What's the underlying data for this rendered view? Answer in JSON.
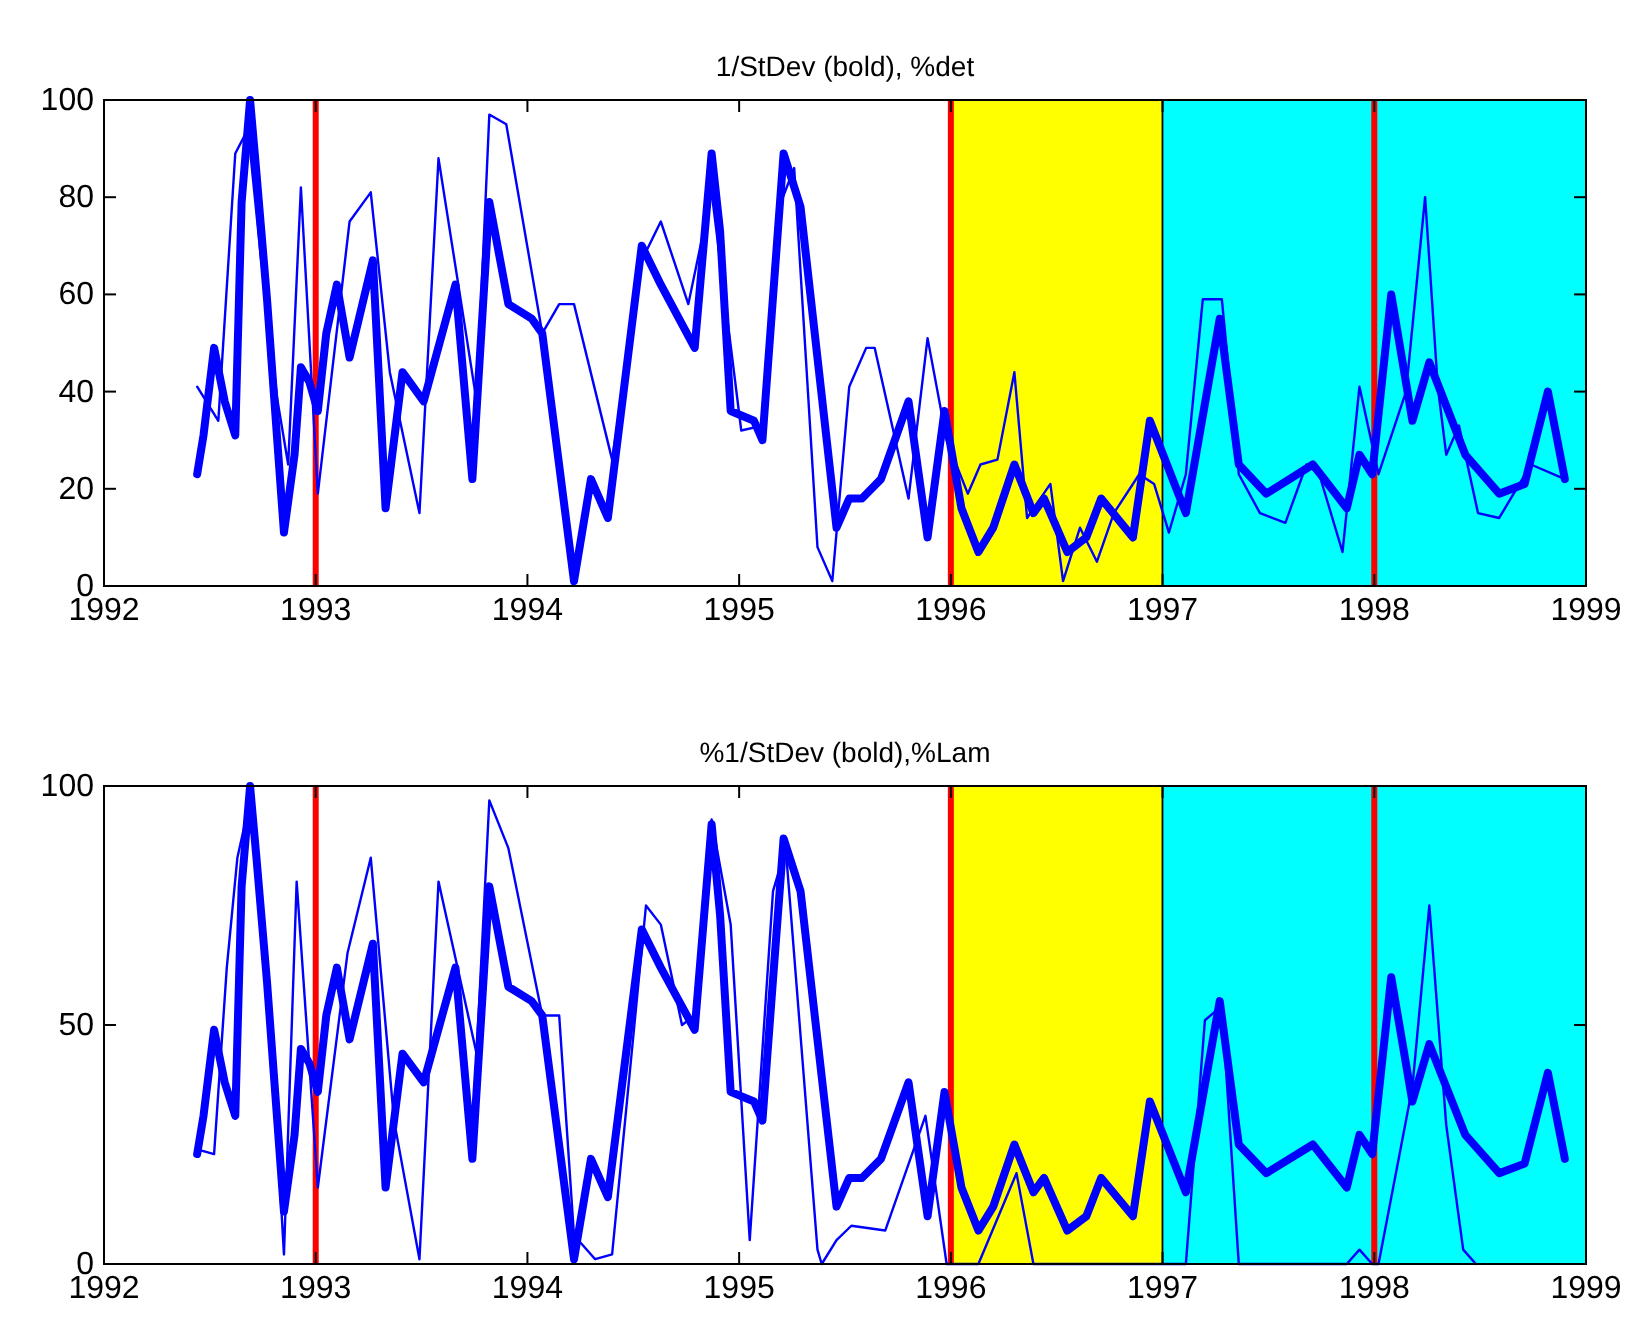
{
  "chart_data": [
    {
      "type": "line",
      "title": "1/StDev (bold), %det",
      "xlim": [
        1992,
        1999
      ],
      "xticks": [
        1992,
        1993,
        1994,
        1995,
        1996,
        1997,
        1998,
        1999
      ],
      "ylim": [
        0,
        100
      ],
      "yticks": [
        0,
        20,
        40,
        60,
        80,
        100
      ],
      "grid": false,
      "bands": [
        {
          "axis": "x",
          "from": 1996,
          "to": 1997,
          "color": "#ffff00"
        },
        {
          "axis": "x",
          "from": 1997,
          "to": 1999,
          "color": "#00ffff"
        }
      ],
      "ref_lines": [
        {
          "axis": "x",
          "value": 1993,
          "color": "#ff0000"
        },
        {
          "axis": "x",
          "value": 1996,
          "color": "#ff0000"
        },
        {
          "axis": "x",
          "value": 1998,
          "color": "#ff0000"
        }
      ],
      "series": [
        {
          "color": "#0000ff",
          "x": [
            1992.44,
            1992.47,
            1992.52,
            1992.57,
            1992.62,
            1992.65,
            1992.69,
            1992.72,
            1992.77,
            1992.85,
            1992.9,
            1992.93,
            1992.97,
            1993.01,
            1993.05,
            1993.1,
            1993.16,
            1993.27,
            1993.33,
            1993.41,
            1993.51,
            1993.66,
            1993.74,
            1993.82,
            1993.91,
            1994.02,
            1994.07,
            1994.22,
            1994.3,
            1994.38,
            1994.54,
            1994.63,
            1994.79,
            1994.87,
            1994.91,
            1994.96,
            1995.07,
            1995.11,
            1995.21,
            1995.29,
            1995.46,
            1995.52,
            1995.58,
            1995.67,
            1995.8,
            1995.89,
            1995.97,
            1996.05,
            1996.13,
            1996.2,
            1996.3,
            1996.39,
            1996.44,
            1996.55,
            1996.64,
            1996.71,
            1996.86,
            1996.94,
            1997.11,
            1997.27,
            1997.36,
            1997.49,
            1997.71,
            1997.87,
            1997.93,
            1997.99,
            1998.08,
            1998.18,
            1998.26,
            1998.43,
            1998.59,
            1998.71,
            1998.82,
            1998.9
          ],
          "values": [
            23,
            31,
            49,
            38,
            31,
            79,
            100,
            85,
            59,
            11,
            27,
            45,
            42,
            36,
            52,
            62,
            47,
            67,
            16,
            44,
            38,
            62,
            22,
            79,
            58,
            55,
            52,
            1,
            22,
            14,
            70,
            62,
            49,
            89,
            73,
            36,
            34,
            30,
            89,
            78,
            12,
            18,
            18,
            22,
            38,
            10,
            36,
            16,
            7,
            12,
            25,
            15,
            18,
            7,
            10,
            18,
            10,
            34,
            15,
            55,
            25,
            19,
            25,
            16,
            27,
            23,
            60,
            34,
            46,
            27,
            19,
            21,
            40,
            22
          ]
        },
        {
          "color": "#0000ff",
          "x": [
            1992.44,
            1992.54,
            1992.62,
            1992.68,
            1992.74,
            1992.82,
            1992.87,
            1992.93,
            1993.01,
            1993.16,
            1993.26,
            1993.35,
            1993.49,
            1993.58,
            1993.76,
            1993.82,
            1993.9,
            1994.07,
            1994.15,
            1994.22,
            1994.4,
            1994.54,
            1994.63,
            1994.76,
            1994.87,
            1995.01,
            1995.11,
            1995.18,
            1995.26,
            1995.37,
            1995.44,
            1995.52,
            1995.6,
            1995.64,
            1995.8,
            1995.89,
            1995.98,
            1996.08,
            1996.14,
            1996.22,
            1996.3,
            1996.36,
            1996.47,
            1996.53,
            1996.61,
            1996.69,
            1996.77,
            1996.89,
            1996.96,
            1997.03,
            1997.11,
            1997.19,
            1997.28,
            1997.36,
            1997.46,
            1997.58,
            1997.68,
            1997.74,
            1997.85,
            1997.93,
            1998.02,
            1998.15,
            1998.24,
            1998.3,
            1998.34,
            1998.4,
            1998.49,
            1998.59,
            1998.74,
            1998.9
          ],
          "values": [
            41,
            34,
            89,
            94,
            68,
            38,
            25,
            82,
            19,
            75,
            81,
            44,
            15,
            88,
            38,
            97,
            95,
            52,
            58,
            58,
            26,
            67,
            75,
            58,
            81,
            32,
            33,
            77,
            86,
            8,
            1,
            41,
            49,
            49,
            18,
            51,
            30,
            19,
            25,
            26,
            44,
            14,
            21,
            1,
            12,
            5,
            15,
            23,
            21,
            11,
            23,
            59,
            59,
            23,
            15,
            13,
            25,
            23,
            7,
            41,
            23,
            40,
            80,
            41,
            27,
            33,
            15,
            14,
            25,
            22
          ]
        }
      ]
    },
    {
      "type": "line",
      "title": "%1/StDev (bold),%Lam",
      "xlim": [
        1992,
        1999
      ],
      "xticks": [
        1992,
        1993,
        1994,
        1995,
        1996,
        1997,
        1998,
        1999
      ],
      "ylim": [
        0,
        100
      ],
      "yticks": [
        0,
        50,
        100
      ],
      "grid": false,
      "bands": [
        {
          "axis": "x",
          "from": 1996,
          "to": 1997,
          "color": "#ffff00"
        },
        {
          "axis": "x",
          "from": 1997,
          "to": 1999,
          "color": "#00ffff"
        }
      ],
      "ref_lines": [
        {
          "axis": "x",
          "value": 1993,
          "color": "#ff0000"
        },
        {
          "axis": "x",
          "value": 1996,
          "color": "#ff0000"
        },
        {
          "axis": "x",
          "value": 1998,
          "color": "#ff0000"
        }
      ],
      "series": [
        {
          "color": "#0000ff",
          "x": [
            1992.44,
            1992.47,
            1992.52,
            1992.57,
            1992.62,
            1992.65,
            1992.69,
            1992.72,
            1992.77,
            1992.85,
            1992.9,
            1992.93,
            1992.97,
            1993.01,
            1993.05,
            1993.1,
            1993.16,
            1993.27,
            1993.33,
            1993.41,
            1993.51,
            1993.66,
            1993.74,
            1993.82,
            1993.91,
            1994.02,
            1994.07,
            1994.22,
            1994.3,
            1994.38,
            1994.54,
            1994.63,
            1994.79,
            1994.87,
            1994.91,
            1994.96,
            1995.07,
            1995.11,
            1995.21,
            1995.29,
            1995.46,
            1995.52,
            1995.58,
            1995.67,
            1995.8,
            1995.89,
            1995.97,
            1996.05,
            1996.13,
            1996.2,
            1996.3,
            1996.39,
            1996.44,
            1996.55,
            1996.64,
            1996.71,
            1996.86,
            1996.94,
            1997.11,
            1997.27,
            1997.36,
            1997.49,
            1997.71,
            1997.87,
            1997.93,
            1997.99,
            1998.08,
            1998.18,
            1998.26,
            1998.43,
            1998.59,
            1998.71,
            1998.82,
            1998.9
          ],
          "values": [
            23,
            31,
            49,
            38,
            31,
            79,
            100,
            85,
            59,
            11,
            27,
            45,
            42,
            36,
            52,
            62,
            47,
            67,
            16,
            44,
            38,
            62,
            22,
            79,
            58,
            55,
            52,
            1,
            22,
            14,
            70,
            62,
            49,
            92,
            73,
            36,
            34,
            30,
            89,
            78,
            12,
            18,
            18,
            22,
            38,
            10,
            36,
            16,
            7,
            12,
            25,
            15,
            18,
            7,
            10,
            18,
            10,
            34,
            15,
            55,
            25,
            19,
            25,
            16,
            27,
            23,
            60,
            34,
            46,
            27,
            19,
            21,
            40,
            22
          ]
        },
        {
          "color": "#0000ff",
          "x": [
            1992.44,
            1992.52,
            1992.58,
            1992.63,
            1992.69,
            1992.77,
            1992.85,
            1992.91,
            1993.01,
            1993.15,
            1993.26,
            1993.37,
            1993.49,
            1993.58,
            1993.76,
            1993.82,
            1993.91,
            1994.07,
            1994.15,
            1994.22,
            1994.32,
            1994.4,
            1994.56,
            1994.63,
            1994.73,
            1994.79,
            1994.87,
            1994.96,
            1995.05,
            1995.16,
            1995.22,
            1995.37,
            1995.39,
            1995.46,
            1995.53,
            1995.69,
            1995.88,
            1995.98,
            1996.13,
            1996.31,
            1996.39,
            1997.11,
            1997.2,
            1997.28,
            1997.36,
            1997.87,
            1997.93,
            1997.99,
            1998.02,
            1998.18,
            1998.26,
            1998.34,
            1998.42,
            1998.48
          ],
          "values": [
            24,
            23,
            62,
            85,
            97,
            64,
            2,
            80,
            16,
            65,
            85,
            30,
            1,
            80,
            44,
            97,
            87,
            52,
            52,
            6,
            1,
            2,
            75,
            71,
            50,
            52,
            93,
            71,
            5,
            78,
            87,
            3,
            0,
            5,
            8,
            7,
            31,
            0,
            0,
            19,
            0,
            0,
            51,
            54,
            0,
            0,
            3,
            0,
            0,
            37,
            75,
            29,
            3,
            0
          ]
        }
      ]
    }
  ]
}
